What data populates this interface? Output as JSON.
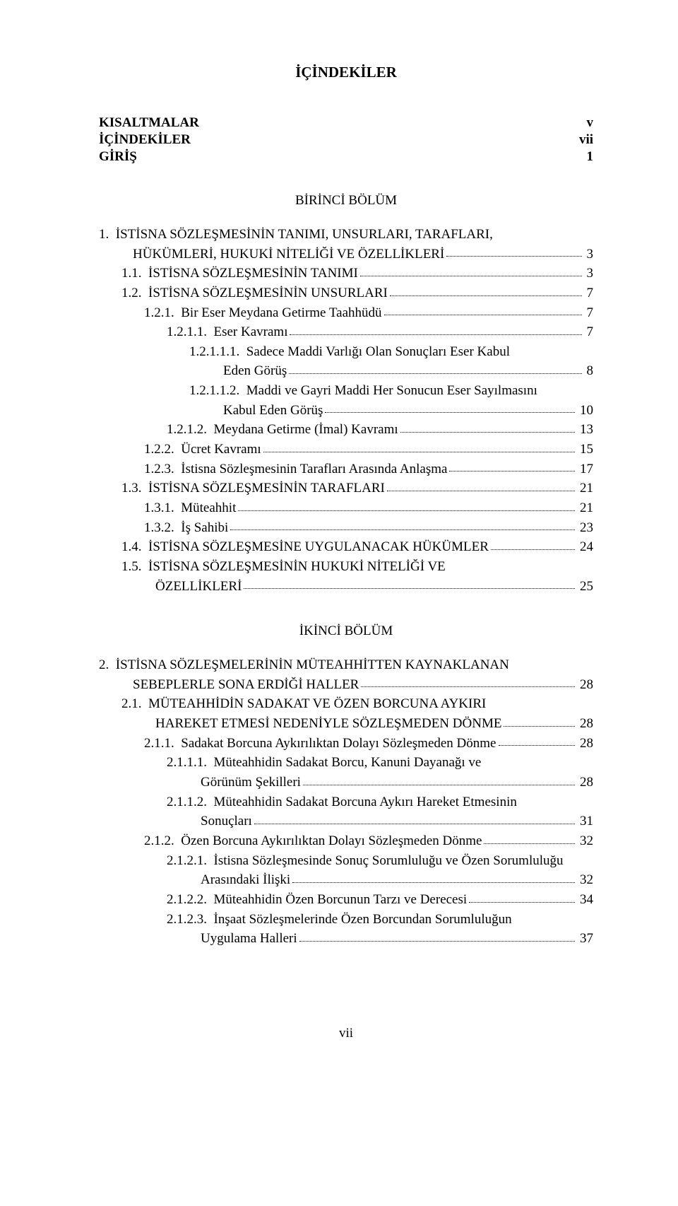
{
  "title": "İÇİNDEKİLER",
  "front": [
    {
      "label": "KISALTMALAR",
      "page": "v"
    },
    {
      "label": "İÇİNDEKİLER",
      "page": "vii"
    },
    {
      "label": "GİRİŞ",
      "page": "1"
    }
  ],
  "section1_heading": "BİRİNCİ BÖLÜM",
  "toc1": [
    {
      "indent": 0,
      "label": "1.  İSTİSNA SÖZLEŞMESİNİN TANIMI, UNSURLARI, TARAFLARI,",
      "wrap": true
    },
    {
      "indent": 0,
      "cont": true,
      "label": "HÜKÜMLERİ, HUKUKİ NİTELİĞİ VE ÖZELLİKLERİ",
      "page": "3"
    },
    {
      "indent": 1,
      "label": "1.1.  İSTİSNA SÖZLEŞMESİNİN TANIMI",
      "page": "3"
    },
    {
      "indent": 1,
      "label": "1.2.  İSTİSNA SÖZLEŞMESİNİN UNSURLARI",
      "page": "7"
    },
    {
      "indent": 2,
      "label": "1.2.1.  Bir Eser Meydana Getirme Taahhüdü",
      "page": "7"
    },
    {
      "indent": 3,
      "label": "1.2.1.1.  Eser Kavramı",
      "page": "7"
    },
    {
      "indent": 4,
      "label": "1.2.1.1.1.  Sadece Maddi Varlığı Olan Sonuçları Eser Kabul",
      "wrap": true
    },
    {
      "indent": 4,
      "cont": true,
      "label": "Eden Görüş",
      "page": "8"
    },
    {
      "indent": 4,
      "label": "1.2.1.1.2.  Maddi ve Gayri Maddi Her Sonucun Eser Sayılmasını",
      "wrap": true
    },
    {
      "indent": 4,
      "cont": true,
      "label": "Kabul Eden Görüş",
      "page": "10"
    },
    {
      "indent": 3,
      "label": "1.2.1.2.  Meydana Getirme (İmal) Kavramı",
      "page": "13"
    },
    {
      "indent": 2,
      "label": "1.2.2.  Ücret Kavramı",
      "page": "15"
    },
    {
      "indent": 2,
      "label": "1.2.3.  İstisna Sözleşmesinin Tarafları Arasında Anlaşma",
      "page": "17"
    },
    {
      "indent": 1,
      "label": "1.3.  İSTİSNA SÖZLEŞMESİNİN TARAFLARI",
      "page": "21"
    },
    {
      "indent": 2,
      "label": "1.3.1.  Müteahhit",
      "page": "21"
    },
    {
      "indent": 2,
      "label": "1.3.2.  İş Sahibi",
      "page": "23"
    },
    {
      "indent": 1,
      "label": "1.4.  İSTİSNA SÖZLEŞMESİNE UYGULANACAK HÜKÜMLER",
      "page": "24"
    },
    {
      "indent": 1,
      "label": "1.5.  İSTİSNA SÖZLEŞMESİNİN HUKUKİ NİTELİĞİ VE",
      "wrap": true
    },
    {
      "indent": 1,
      "cont": true,
      "label": "ÖZELLİKLERİ",
      "page": "25"
    }
  ],
  "section2_heading": "İKİNCİ BÖLÜM",
  "toc2": [
    {
      "indent": 0,
      "label": "2.  İSTİSNA SÖZLEŞMELERİNİN MÜTEAHHİTTEN KAYNAKLANAN",
      "wrap": true
    },
    {
      "indent": 0,
      "cont": true,
      "label": "SEBEPLERLE SONA ERDİĞİ HALLER",
      "page": "28"
    },
    {
      "indent": 1,
      "label": "2.1.  MÜTEAHHİDİN SADAKAT VE ÖZEN BORCUNA AYKIRI",
      "wrap": true
    },
    {
      "indent": 1,
      "cont": true,
      "label": "HAREKET ETMESİ NEDENİYLE SÖZLEŞMEDEN DÖNME",
      "page": "28"
    },
    {
      "indent": 2,
      "label": "2.1.1.  Sadakat Borcuna Aykırılıktan Dolayı Sözleşmeden Dönme",
      "page": "28"
    },
    {
      "indent": 3,
      "label": "2.1.1.1.  Müteahhidin Sadakat Borcu, Kanuni Dayanağı ve",
      "wrap": true
    },
    {
      "indent": 3,
      "cont": true,
      "label": "Görünüm Şekilleri",
      "page": "28"
    },
    {
      "indent": 3,
      "label": "2.1.1.2.  Müteahhidin Sadakat Borcuna Aykırı Hareket Etmesinin",
      "wrap": true
    },
    {
      "indent": 3,
      "cont": true,
      "label": "Sonuçları",
      "page": "31"
    },
    {
      "indent": 2,
      "label": "2.1.2.  Özen Borcuna Aykırılıktan Dolayı Sözleşmeden Dönme",
      "page": "32"
    },
    {
      "indent": 3,
      "label": "2.1.2.1.  İstisna Sözleşmesinde Sonuç Sorumluluğu ve Özen Sorumluluğu",
      "wrap": true
    },
    {
      "indent": 3,
      "cont": true,
      "label": "Arasındaki İlişki",
      "page": "32"
    },
    {
      "indent": 3,
      "label": "2.1.2.2.  Müteahhidin Özen Borcunun Tarzı ve Derecesi",
      "page": "34"
    },
    {
      "indent": 3,
      "label": "2.1.2.3.  İnşaat Sözleşmelerinde Özen Borcundan Sorumluluğun",
      "wrap": true
    },
    {
      "indent": 3,
      "cont": true,
      "label": "Uygulama Halleri",
      "page": "37"
    }
  ],
  "footer": "vii"
}
